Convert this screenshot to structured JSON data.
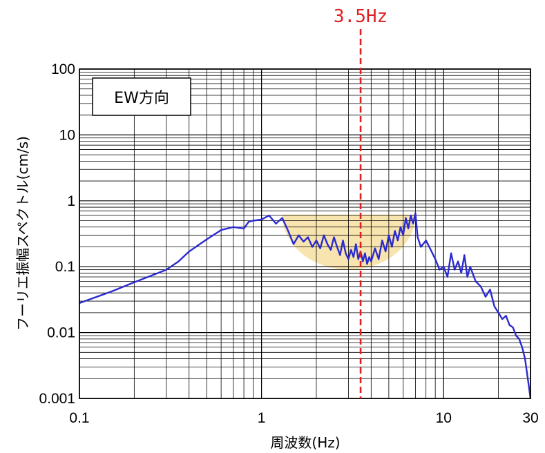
{
  "chart_data": {
    "type": "line",
    "title": "",
    "xlabel": "周波数(Hz)",
    "ylabel": "フーリエ振幅スペクトル(cm/s)",
    "x_scale": "log",
    "y_scale": "log",
    "xlim": [
      0.1,
      30
    ],
    "ylim": [
      0.001,
      100
    ],
    "grid": true,
    "x_ticks": [
      {
        "value": 0.1,
        "label": "0.1"
      },
      {
        "value": 1,
        "label": "1"
      },
      {
        "value": 10,
        "label": "10"
      },
      {
        "value": 30,
        "label": "30"
      }
    ],
    "y_ticks": [
      {
        "value": 0.001,
        "label": "0.001"
      },
      {
        "value": 0.01,
        "label": "0.01"
      },
      {
        "value": 0.1,
        "label": "0.1"
      },
      {
        "value": 1,
        "label": "1"
      },
      {
        "value": 10,
        "label": "10"
      },
      {
        "value": 100,
        "label": "100"
      }
    ],
    "legend": {
      "text": "EW方向",
      "position": "top-left"
    },
    "marker": {
      "x": 3.5,
      "label": "3.5Hz",
      "color": "#e02020"
    },
    "highlight_band": {
      "x_range": [
        1.3,
        7.0
      ],
      "y_top": 0.62,
      "y_bottom": 0.09,
      "color": "#f7dfa0"
    },
    "series": [
      {
        "color": "#2a2ad0",
        "x": [
          0.1,
          0.15,
          0.2,
          0.3,
          0.35,
          0.4,
          0.5,
          0.6,
          0.7,
          0.8,
          0.85,
          0.9,
          1.0,
          1.1,
          1.2,
          1.3,
          1.4,
          1.5,
          1.6,
          1.7,
          1.8,
          1.9,
          2.0,
          2.1,
          2.2,
          2.3,
          2.4,
          2.5,
          2.6,
          2.7,
          2.8,
          2.9,
          3.0,
          3.1,
          3.2,
          3.3,
          3.4,
          3.5,
          3.6,
          3.7,
          3.8,
          3.9,
          4.0,
          4.2,
          4.4,
          4.6,
          4.8,
          5.0,
          5.2,
          5.4,
          5.6,
          5.8,
          6.0,
          6.2,
          6.4,
          6.6,
          6.8,
          7.0,
          7.2,
          7.5,
          8.0,
          8.5,
          9.0,
          9.5,
          10.0,
          10.5,
          11.0,
          11.5,
          12.0,
          12.5,
          13.0,
          13.5,
          14.0,
          15.0,
          16.0,
          17.0,
          18.0,
          19.0,
          20.0,
          21.0,
          22.0,
          23.0,
          24.0,
          25.0,
          26.0,
          27.0,
          28.0,
          29.0,
          30.0
        ],
        "y": [
          0.028,
          0.042,
          0.058,
          0.09,
          0.12,
          0.17,
          0.26,
          0.36,
          0.4,
          0.38,
          0.48,
          0.5,
          0.52,
          0.6,
          0.45,
          0.55,
          0.35,
          0.22,
          0.3,
          0.24,
          0.28,
          0.2,
          0.25,
          0.19,
          0.3,
          0.22,
          0.18,
          0.28,
          0.2,
          0.15,
          0.25,
          0.16,
          0.13,
          0.18,
          0.14,
          0.22,
          0.13,
          0.17,
          0.12,
          0.16,
          0.11,
          0.14,
          0.12,
          0.19,
          0.13,
          0.25,
          0.17,
          0.3,
          0.2,
          0.35,
          0.25,
          0.4,
          0.3,
          0.55,
          0.38,
          0.6,
          0.45,
          0.65,
          0.28,
          0.2,
          0.25,
          0.18,
          0.13,
          0.09,
          0.1,
          0.07,
          0.16,
          0.09,
          0.12,
          0.08,
          0.15,
          0.07,
          0.1,
          0.06,
          0.05,
          0.035,
          0.045,
          0.025,
          0.02,
          0.016,
          0.018,
          0.013,
          0.012,
          0.009,
          0.008,
          0.006,
          0.004,
          0.002,
          0.001
        ]
      }
    ]
  }
}
